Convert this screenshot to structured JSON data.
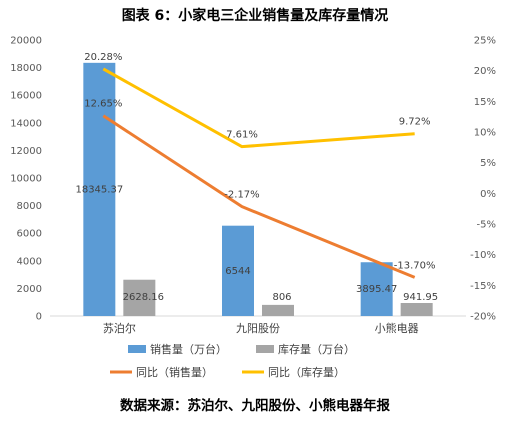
{
  "chart_data": {
    "title": "图表 6：小家电三企业销售量及库存量情况",
    "source": "数据来源：苏泊尔、九阳股份、小熊电器年报",
    "type": "bar+line",
    "categories": [
      "苏泊尔",
      "九阳股份",
      "小熊电器"
    ],
    "bar_series": [
      {
        "name": "销售量（万台）",
        "values": [
          18345.37,
          6544,
          3895.47
        ],
        "labels": [
          "18345.37",
          "6544",
          "3895.47"
        ],
        "color": "#5B9BD5"
      },
      {
        "name": "库存量（万台）",
        "values": [
          2628.16,
          806,
          941.95
        ],
        "labels": [
          "2628.16",
          "806",
          "941.95"
        ],
        "color": "#A5A5A5"
      }
    ],
    "line_series": [
      {
        "name": "同比（销售量）",
        "values": [
          12.65,
          -2.17,
          -13.7
        ],
        "labels": [
          "12.65%",
          "-2.17%",
          "-13.70%"
        ],
        "color": "#ED7D31"
      },
      {
        "name": "同比（库存量）",
        "values": [
          20.28,
          7.61,
          9.72
        ],
        "labels": [
          "20.28%",
          "7.61%",
          "9.72%"
        ],
        "color": "#FFC000"
      }
    ],
    "y_left": {
      "min": 0,
      "max": 20000,
      "step": 2000,
      "ticks": [
        "0",
        "2000",
        "4000",
        "6000",
        "8000",
        "10000",
        "12000",
        "14000",
        "16000",
        "18000",
        "20000"
      ]
    },
    "y_right": {
      "min": -20,
      "max": 25,
      "step": 5,
      "ticks": [
        "-20%",
        "-15%",
        "-10%",
        "-5%",
        "0%",
        "5%",
        "10%",
        "15%",
        "20%",
        "25%"
      ]
    },
    "grid": false,
    "legend_position": "bottom"
  }
}
